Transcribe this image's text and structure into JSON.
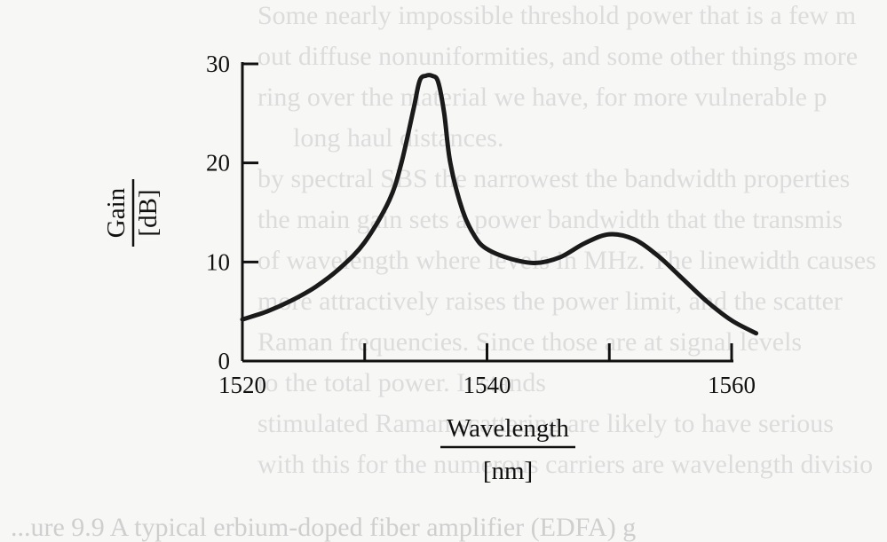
{
  "chart_data": {
    "type": "line",
    "xlabel": "Wavelength",
    "xunit": "[nm]",
    "ylabel": "Gain",
    "yunit": "[dB]",
    "xlim": [
      1520,
      1560
    ],
    "ylim": [
      0,
      30
    ],
    "x_ticks": [
      1520,
      1530,
      1540,
      1550,
      1560
    ],
    "x_tick_labels": [
      "1520",
      "",
      "1540",
      "",
      "1560"
    ],
    "y_ticks": [
      0,
      10,
      20,
      30
    ],
    "y_tick_labels": [
      "0",
      "10",
      "20",
      "30"
    ],
    "grid": false,
    "series": [
      {
        "x": [
          1520,
          1522,
          1524,
          1526,
          1528,
          1530,
          1532,
          1533,
          1534,
          1534.5,
          1535,
          1535.5,
          1536,
          1536.5,
          1537,
          1538,
          1539,
          1540,
          1542,
          1544,
          1546,
          1548,
          1550,
          1552,
          1554,
          1556,
          1558,
          1560,
          1562
        ],
        "y": [
          4.2,
          5.0,
          6.1,
          7.5,
          9.4,
          12.0,
          16.2,
          20.0,
          25.5,
          28.3,
          28.8,
          28.8,
          28.2,
          25.0,
          20.0,
          15.2,
          12.6,
          11.3,
          10.3,
          9.9,
          10.5,
          11.9,
          12.8,
          12.3,
          10.6,
          8.3,
          6.0,
          4.1,
          2.8
        ]
      }
    ]
  },
  "background_text": [
    "Some nearly impossible threshold power that is a few m",
    "out diffuse nonuniformities, and some other things more",
    "ring over the material we have, for more vulnerable p",
    "long haul distances.",
    "by spectral SBS the narrowest the bandwidth properties",
    "the main gain sets a power bandwidth that the transmis",
    "of wavelength where levels in MHz. The linewidth causes",
    "more attractively raises the power limit, and the scatter",
    "Raman frequencies. Since those are at signal levels",
    "to the total power. It stands",
    "stimulated Raman scattering are likely to have serious",
    "with this for the numerous carriers are wavelength divisio"
  ],
  "caption": "...ure 9.9  A typical erbium-doped fiber amplifier (EDFA) g"
}
